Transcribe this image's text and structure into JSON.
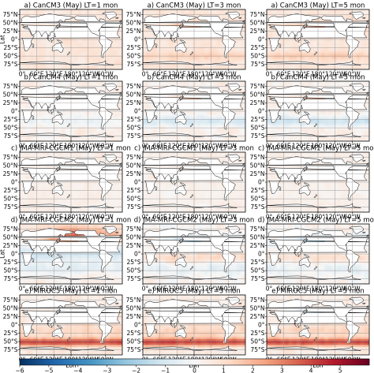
{
  "chart_data": {
    "type": "heatmap",
    "panel_grid": {
      "rows": 5,
      "cols": 3
    },
    "panels": [
      {
        "title": "a) CanCM3 (May) LT=1 mon",
        "model": "CanCM3",
        "lead_time_months": 1
      },
      {
        "title": "a) CanCM3 (May) LT=3 mon",
        "model": "CanCM3",
        "lead_time_months": 3
      },
      {
        "title": "a) CanCM3 (May) LT=5 mon",
        "model": "CanCM3",
        "lead_time_months": 5
      },
      {
        "title": "b) CanCM4 (May) LT=1 mon",
        "model": "CanCM4",
        "lead_time_months": 1
      },
      {
        "title": "b) CanCM4 (May) LT=3 mon",
        "model": "CanCM4",
        "lead_time_months": 3
      },
      {
        "title": "b) CanCM4 (May) LT=5 mon",
        "model": "CanCM4",
        "lead_time_months": 5
      },
      {
        "title": "c) JMA-MRI-CGCM1 (May) LT=1 mon",
        "model": "JMA-MRI-CGCM1",
        "lead_time_months": 1
      },
      {
        "title": "c) JMA-MRI-CGCM1 (May) LT=3 mon",
        "model": "JMA-MRI-CGCM1",
        "lead_time_months": 3
      },
      {
        "title": "c) JMA-MRI-CGCM1 (May) LT=5 mon",
        "model": "JMA-MRI-CGCM1",
        "lead_time_months": 5
      },
      {
        "title": "d) JMA-MRI-CGCM2 (May) LT=1 mon",
        "model": "JMA-MRI-CGCM2",
        "lead_time_months": 1
      },
      {
        "title": "d) JMA-MRI-CGCM2 (May) LT=3 mon",
        "model": "JMA-MRI-CGCM2",
        "lead_time_months": 3
      },
      {
        "title": "d) JMA-MRI-CGCM2 (May) LT=5 mon",
        "model": "JMA-MRI-CGCM2",
        "lead_time_months": 5
      },
      {
        "title": "e) MIROC5 (May) LT=1 mon",
        "model": "MIROC5",
        "lead_time_months": 1
      },
      {
        "title": "e) MIROC5 (May) LT=3 mon",
        "model": "MIROC5",
        "lead_time_months": 3
      },
      {
        "title": "e) MIROC5 (May) LT=5 mon",
        "model": "MIROC5",
        "lead_time_months": 5
      }
    ],
    "y_ticks": [
      "75°N",
      "50°N",
      "25°N",
      "0°",
      "25°S",
      "50°S",
      "75°S"
    ],
    "y_tick_values": [
      75,
      50,
      25,
      0,
      -25,
      -50,
      -75
    ],
    "x_ticks": [
      "0°",
      "60°E",
      "120°E",
      "180°",
      "120°W",
      "60°W"
    ],
    "x_tick_values": [
      0,
      60,
      120,
      180,
      240,
      300
    ],
    "xlabel": "Lon",
    "ylabel": "Lat",
    "colorbar": {
      "ticks": [
        -6,
        -5,
        -4,
        -3,
        -2,
        -1,
        0,
        1,
        2,
        3,
        4,
        5
      ],
      "tick_labels": [
        "−6",
        "−5",
        "−4",
        "−3",
        "−2",
        "−1",
        "0",
        "1",
        "2",
        "3",
        "4",
        "5"
      ],
      "range": [
        -6,
        6
      ],
      "colormap": "RdBu_r",
      "colors": [
        "#053061",
        "#2166ac",
        "#4393c3",
        "#92c5de",
        "#d1e5f0",
        "#f7f7f7",
        "#fddbc7",
        "#f4a582",
        "#d6604d",
        "#b2182b",
        "#67001f"
      ]
    },
    "grid": true
  }
}
